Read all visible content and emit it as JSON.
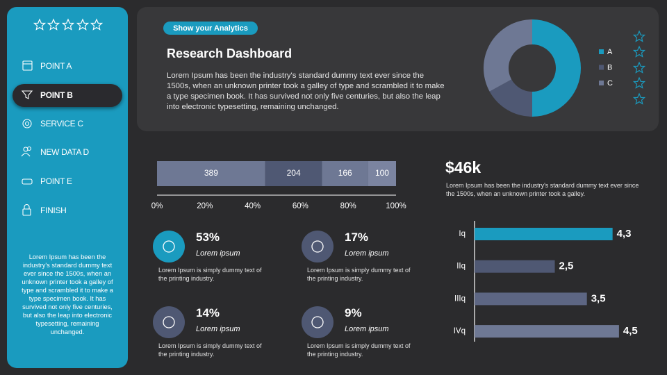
{
  "sidebar": {
    "nav": [
      "POINT A",
      "POINT B",
      "SERVICE C",
      "NEW DATA  D",
      "POINT E",
      "FINISH"
    ],
    "active": 1,
    "text": "Lorem Ipsum has been the industry's standard dummy text ever since the 1500s, when an unknown printer took a galley of type and scrambled it to make a type specimen book. It has survived not only five centuries, but also the leap into electronic typesetting, remaining unchanged."
  },
  "header": {
    "badge": "Show your Analytics",
    "title": "Research Dashboard",
    "text": "Lorem Ipsum has been the industry's standard dummy text ever since the 1500s, when an unknown printer took a galley of type and scrambled it to make a type specimen book. It has survived not only five centuries, but also the leap into electronic typesetting, remaining unchanged."
  },
  "stats": [
    {
      "value": "53%",
      "label": "Lorem ipsum",
      "text": "Lorem Ipsum is simply dummy text of the printing industry.",
      "color": "#1a9bbf"
    },
    {
      "value": "17%",
      "label": "Lorem ipsum",
      "text": "Lorem Ipsum is simply dummy text of the printing industry.",
      "color": "#4f5873"
    },
    {
      "value": "14%",
      "label": "Lorem ipsum",
      "text": "Lorem Ipsum is simply dummy text of the printing industry.",
      "color": "#4f5873"
    },
    {
      "value": "9%",
      "label": "Lorem ipsum",
      "text": "Lorem Ipsum is simply dummy text of the printing industry.",
      "color": "#4f5873"
    }
  ],
  "kpi": {
    "value": "$46k",
    "text": "Lorem Ipsum has been the industry's standard dummy text ever since the 1500s, when an unknown printer took a galley."
  },
  "chart_data": [
    {
      "type": "pie",
      "donut": true,
      "categories": [
        "A",
        "B",
        "C"
      ],
      "values": [
        50,
        17,
        33
      ],
      "colors": [
        "#1a9bbf",
        "#4f5873",
        "#6e7894"
      ]
    },
    {
      "type": "stacked_bar",
      "values": [
        389,
        204,
        166,
        100
      ],
      "colors": [
        "#6e7894",
        "#4f5873",
        "#6e7894",
        "#7b84a0"
      ],
      "xlim": [
        0,
        100
      ],
      "xticks": [
        {
          "value": 0,
          "label": "0%"
        },
        {
          "value": 20,
          "label": "20%"
        },
        {
          "value": 40,
          "label": "40%"
        },
        {
          "value": 60,
          "label": "60%"
        },
        {
          "value": 80,
          "label": "80%"
        },
        {
          "value": 100,
          "label": "100%"
        }
      ]
    },
    {
      "type": "bar",
      "categories": [
        "Iq",
        "IIq",
        "IIIq",
        "IVq"
      ],
      "values": [
        4.3,
        2.5,
        3.5,
        4.5
      ],
      "value_labels": [
        "4,3",
        "2,5",
        "3,5",
        "4,5"
      ],
      "colors": [
        "#1a9bbf",
        "#4f5873",
        "#5d6683",
        "#6e7894"
      ],
      "xlim": [
        0,
        5
      ]
    }
  ]
}
